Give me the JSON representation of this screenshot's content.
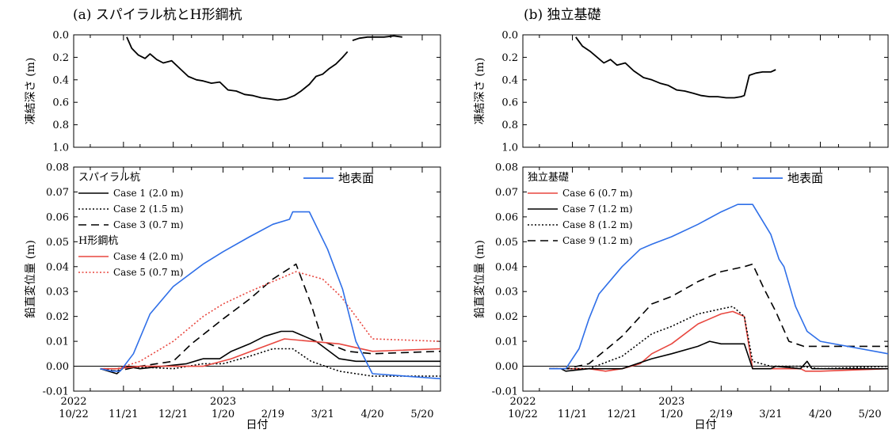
{
  "chart_data": [
    {
      "type": "line",
      "panel": "top",
      "title": "(a) スパイラル杭とH形鋼杭",
      "ylabel": "凍結深さ (m)",
      "ylim": [
        0.0,
        1.0
      ],
      "y_inverted": true,
      "yticks": [
        "0.0",
        "0.2",
        "0.4",
        "0.6",
        "0.8",
        "1.0"
      ],
      "series": [
        {
          "name": "",
          "color": "#000000",
          "dash": "solid",
          "x": [
            "2022-11-23",
            "2022-11-26",
            "2022-11-30",
            "2022-12-04",
            "2022-12-07",
            "2022-12-11",
            "2022-12-15",
            "2022-12-20",
            "2022-12-25",
            "2022-12-30",
            "2023-01-04",
            "2023-01-08",
            "2023-01-13",
            "2023-01-18",
            "2023-01-23",
            "2023-01-28",
            "2023-02-02",
            "2023-02-07",
            "2023-02-12",
            "2023-02-17",
            "2023-02-22",
            "2023-02-27",
            "2023-03-04",
            "2023-03-08",
            "2023-03-13",
            "2023-03-17",
            "2023-03-21",
            "2023-03-25",
            "2023-03-29",
            "2023-04-02",
            "2023-04-05"
          ],
          "y": [
            0.02,
            0.12,
            0.18,
            0.21,
            0.17,
            0.22,
            0.25,
            0.23,
            0.3,
            0.37,
            0.4,
            0.41,
            0.43,
            0.42,
            0.49,
            0.5,
            0.53,
            0.54,
            0.56,
            0.57,
            0.58,
            0.57,
            0.54,
            0.5,
            0.44,
            0.37,
            0.35,
            0.3,
            0.26,
            0.2,
            0.15
          ]
        },
        {
          "name": "",
          "color": "#000000",
          "dash": "solid",
          "x": [
            "2023-04-08",
            "2023-04-12",
            "2023-04-17",
            "2023-04-22",
            "2023-04-27",
            "2023-05-03",
            "2023-05-08"
          ],
          "y": [
            0.05,
            0.03,
            0.02,
            0.02,
            0.02,
            0.01,
            0.02
          ]
        }
      ],
      "xlim": [
        "2022-10-22",
        "2023-05-31"
      ]
    },
    {
      "type": "line",
      "panel": "bottom",
      "ylabel": "鉛直変位量 (m)",
      "xlabel": "日付",
      "ylim": [
        -0.01,
        0.08
      ],
      "yticks": [
        "-0.01",
        "0.00",
        "0.01",
        "0.02",
        "0.03",
        "0.04",
        "0.05",
        "0.06",
        "0.07",
        "0.08"
      ],
      "xticks": [
        {
          "date": "2022-10-22",
          "l1": "2022",
          "l2": "10/22"
        },
        {
          "date": "2022-11-21",
          "l1": "",
          "l2": "11/21"
        },
        {
          "date": "2022-12-21",
          "l1": "",
          "l2": "12/21"
        },
        {
          "date": "2023-01-20",
          "l1": "2023",
          "l2": "1/20"
        },
        {
          "date": "2023-02-19",
          "l1": "",
          "l2": "2/19"
        },
        {
          "date": "2023-03-21",
          "l1": "",
          "l2": "3/21"
        },
        {
          "date": "2023-04-20",
          "l1": "",
          "l2": "4/20"
        },
        {
          "date": "2023-05-20",
          "l1": "",
          "l2": "5/20"
        }
      ],
      "xlim": [
        "2022-10-22",
        "2023-05-31"
      ],
      "legend_groups": [
        "スパイラル杭",
        "H形鋼杭"
      ],
      "surface_legend": "地表面",
      "series": [
        {
          "name": "Case 1 (2.0 m)",
          "group": 0,
          "color": "#000000",
          "dash": "solid",
          "x": [
            "2022-11-07",
            "2022-11-12",
            "2022-11-17",
            "2022-11-22",
            "2022-12-01",
            "2022-12-15",
            "2022-12-29",
            "2023-01-08",
            "2023-01-18",
            "2023-01-25",
            "2023-02-05",
            "2023-02-14",
            "2023-02-24",
            "2023-03-03",
            "2023-03-10",
            "2023-03-17",
            "2023-03-31",
            "2023-04-10",
            "2023-04-20",
            "2023-05-31"
          ],
          "y": [
            -0.001,
            -0.002,
            -0.003,
            0.0,
            -0.001,
            0.0,
            0.001,
            0.003,
            0.003,
            0.006,
            0.009,
            0.012,
            0.014,
            0.014,
            0.012,
            0.01,
            0.003,
            0.002,
            0.002,
            0.002
          ]
        },
        {
          "name": "Case 2 (1.5 m)",
          "group": 0,
          "color": "#000000",
          "dash": "2,2.5",
          "x": [
            "2022-11-07",
            "2022-11-17",
            "2022-11-22",
            "2022-12-21",
            "2023-01-08",
            "2023-01-20",
            "2023-02-05",
            "2023-02-19",
            "2023-03-03",
            "2023-03-14",
            "2023-03-31",
            "2023-04-20",
            "2023-05-31"
          ],
          "y": [
            -0.001,
            -0.002,
            0.0,
            -0.001,
            0.001,
            0.001,
            0.004,
            0.007,
            0.007,
            0.002,
            -0.002,
            -0.004,
            -0.004
          ]
        },
        {
          "name": "Case 3 (0.7 m)",
          "group": 0,
          "color": "#000000",
          "dash": "10,6",
          "x": [
            "2022-11-07",
            "2022-11-17",
            "2022-12-01",
            "2022-12-21",
            "2023-01-01",
            "2023-01-20",
            "2023-02-05",
            "2023-02-19",
            "2023-03-05",
            "2023-03-14",
            "2023-03-21",
            "2023-04-05",
            "2023-04-20",
            "2023-05-31"
          ],
          "y": [
            -0.001,
            -0.002,
            0.0,
            0.002,
            0.009,
            0.019,
            0.027,
            0.035,
            0.041,
            0.025,
            0.01,
            0.006,
            0.005,
            0.006
          ]
        },
        {
          "name": "Case 4 (2.0 m)",
          "group": 1,
          "color": "#e8473f",
          "dash": "solid",
          "x": [
            "2022-11-07",
            "2022-11-17",
            "2022-12-01",
            "2022-12-21",
            "2023-01-08",
            "2023-01-25",
            "2023-02-10",
            "2023-02-26",
            "2023-03-14",
            "2023-03-31",
            "2023-04-20",
            "2023-05-31"
          ],
          "y": [
            -0.001,
            -0.001,
            0.0,
            0.0,
            0.0,
            0.003,
            0.007,
            0.011,
            0.01,
            0.009,
            0.006,
            0.007
          ]
        },
        {
          "name": "Case 5 (0.7 m)",
          "group": 1,
          "color": "#e8473f",
          "dash": "2,2.5",
          "x": [
            "2022-11-07",
            "2022-11-17",
            "2022-12-01",
            "2022-12-21",
            "2023-01-08",
            "2023-01-20",
            "2023-02-05",
            "2023-02-19",
            "2023-03-05",
            "2023-03-21",
            "2023-04-01",
            "2023-04-10",
            "2023-04-20",
            "2023-05-31"
          ],
          "y": [
            -0.001,
            -0.001,
            0.002,
            0.01,
            0.02,
            0.025,
            0.03,
            0.034,
            0.038,
            0.035,
            0.028,
            0.02,
            0.011,
            0.01
          ]
        },
        {
          "name": "地表面",
          "color": "#2f6fe8",
          "dash": "solid",
          "x": [
            "2022-11-07",
            "2022-11-14",
            "2022-11-19",
            "2022-11-27",
            "2022-12-07",
            "2022-12-21",
            "2023-01-08",
            "2023-01-20",
            "2023-02-05",
            "2023-02-19",
            "2023-03-01",
            "2023-03-03",
            "2023-03-13",
            "2023-03-24",
            "2023-04-02",
            "2023-04-10",
            "2023-04-20",
            "2023-05-31"
          ],
          "y": [
            -0.001,
            -0.002,
            -0.002,
            0.005,
            0.021,
            0.032,
            0.041,
            0.046,
            0.052,
            0.057,
            0.059,
            0.062,
            0.062,
            0.047,
            0.031,
            0.01,
            -0.003,
            -0.005
          ]
        }
      ]
    },
    {
      "type": "line",
      "panel": "top",
      "title": "(b) 独立基礎",
      "ylabel": "凍結深さ (m)",
      "ylim": [
        0.0,
        1.0
      ],
      "y_inverted": true,
      "yticks": [
        "0.0",
        "0.2",
        "0.4",
        "0.6",
        "0.8",
        "1.0"
      ],
      "series": [
        {
          "name": "",
          "color": "#000000",
          "dash": "solid",
          "x": [
            "2022-11-23",
            "2022-11-27",
            "2022-12-02",
            "2022-12-06",
            "2022-12-10",
            "2022-12-14",
            "2022-12-18",
            "2022-12-23",
            "2022-12-28",
            "2023-01-03",
            "2023-01-08",
            "2023-01-13",
            "2023-01-18",
            "2023-01-23",
            "2023-01-28",
            "2023-02-02",
            "2023-02-07",
            "2023-02-12",
            "2023-02-17",
            "2023-02-22",
            "2023-02-27",
            "2023-03-03",
            "2023-03-05",
            "2023-03-08",
            "2023-03-12",
            "2023-03-16",
            "2023-03-21",
            "2023-03-24"
          ],
          "y": [
            0.02,
            0.1,
            0.15,
            0.2,
            0.25,
            0.22,
            0.27,
            0.25,
            0.32,
            0.38,
            0.4,
            0.43,
            0.45,
            0.49,
            0.5,
            0.52,
            0.54,
            0.55,
            0.55,
            0.56,
            0.56,
            0.55,
            0.54,
            0.36,
            0.34,
            0.33,
            0.33,
            0.31
          ]
        }
      ],
      "xlim": [
        "2022-10-22",
        "2023-05-31"
      ]
    },
    {
      "type": "line",
      "panel": "bottom",
      "ylabel": "鉛直変位量 (m)",
      "xlabel": "日付",
      "ylim": [
        -0.01,
        0.08
      ],
      "yticks": [
        "-0.01",
        "0.00",
        "0.01",
        "0.02",
        "0.03",
        "0.04",
        "0.05",
        "0.06",
        "0.07",
        "0.08"
      ],
      "xticks": [
        {
          "date": "2022-10-22",
          "l1": "2022",
          "l2": "10/22"
        },
        {
          "date": "2022-11-21",
          "l1": "",
          "l2": "11/21"
        },
        {
          "date": "2022-12-21",
          "l1": "",
          "l2": "12/21"
        },
        {
          "date": "2023-01-20",
          "l1": "2023",
          "l2": "1/20"
        },
        {
          "date": "2023-02-19",
          "l1": "",
          "l2": "2/19"
        },
        {
          "date": "2023-03-21",
          "l1": "",
          "l2": "3/21"
        },
        {
          "date": "2023-04-20",
          "l1": "",
          "l2": "4/20"
        },
        {
          "date": "2023-05-20",
          "l1": "",
          "l2": "5/20"
        }
      ],
      "xlim": [
        "2022-10-22",
        "2023-05-31"
      ],
      "legend_groups": [
        "独立基礎"
      ],
      "surface_legend": "地表面",
      "series": [
        {
          "name": "Case 6 (0.7 m)",
          "group": 0,
          "color": "#e8473f",
          "dash": "solid",
          "x": [
            "2022-11-07",
            "2022-11-17",
            "2022-12-01",
            "2022-12-11",
            "2022-12-21",
            "2023-01-01",
            "2023-01-08",
            "2023-01-20",
            "2023-02-05",
            "2023-02-19",
            "2023-02-26",
            "2023-03-05",
            "2023-03-10",
            "2023-03-21",
            "2023-04-01",
            "2023-04-08",
            "2023-04-11",
            "2023-04-15",
            "2023-04-20",
            "2023-05-31"
          ],
          "y": [
            -0.001,
            -0.001,
            -0.001,
            -0.002,
            -0.001,
            0.001,
            0.005,
            0.009,
            0.017,
            0.021,
            0.022,
            0.02,
            -0.001,
            -0.001,
            -0.001,
            -0.001,
            -0.002,
            -0.002,
            -0.002,
            -0.001
          ]
        },
        {
          "name": "Case 7 (1.2 m)",
          "group": 0,
          "color": "#000000",
          "dash": "solid",
          "x": [
            "2022-11-07",
            "2022-11-14",
            "2022-11-17",
            "2022-12-01",
            "2022-12-21",
            "2023-01-08",
            "2023-01-20",
            "2023-02-05",
            "2023-02-12",
            "2023-02-19",
            "2023-02-26",
            "2023-03-05",
            "2023-03-10",
            "2023-03-21",
            "2023-03-24",
            "2023-04-08",
            "2023-04-12",
            "2023-04-15",
            "2023-04-20",
            "2023-05-31"
          ],
          "y": [
            -0.001,
            -0.001,
            -0.002,
            -0.001,
            -0.001,
            0.003,
            0.005,
            0.008,
            0.01,
            0.009,
            0.009,
            0.009,
            -0.001,
            -0.001,
            0.0,
            -0.001,
            0.002,
            -0.001,
            -0.001,
            -0.001
          ]
        },
        {
          "name": "Case 8 (1.2 m)",
          "group": 0,
          "color": "#000000",
          "dash": "2,2.5",
          "x": [
            "2022-11-07",
            "2022-11-17",
            "2022-12-01",
            "2022-12-21",
            "2023-01-08",
            "2023-01-20",
            "2023-02-05",
            "2023-02-19",
            "2023-02-26",
            "2023-03-05",
            "2023-03-10",
            "2023-03-21",
            "2023-04-08",
            "2023-04-20",
            "2023-05-31"
          ],
          "y": [
            -0.001,
            -0.001,
            -0.001,
            0.004,
            0.013,
            0.016,
            0.021,
            0.023,
            0.024,
            0.02,
            0.002,
            0.0,
            0.0,
            -0.001,
            0.0
          ]
        },
        {
          "name": "Case 9 (1.2 m)",
          "group": 0,
          "color": "#000000",
          "dash": "10,6",
          "x": [
            "2022-11-07",
            "2022-11-17",
            "2022-12-01",
            "2022-12-21",
            "2023-01-08",
            "2023-01-20",
            "2023-02-05",
            "2023-02-19",
            "2023-03-05",
            "2023-03-10",
            "2023-03-17",
            "2023-03-24",
            "2023-04-01",
            "2023-04-10",
            "2023-04-20",
            "2023-05-31"
          ],
          "y": [
            -0.001,
            -0.001,
            0.001,
            0.012,
            0.025,
            0.028,
            0.034,
            0.038,
            0.04,
            0.041,
            0.031,
            0.022,
            0.01,
            0.008,
            0.008,
            0.008
          ]
        },
        {
          "name": "地表面",
          "color": "#2f6fe8",
          "dash": "solid",
          "x": [
            "2022-11-07",
            "2022-11-17",
            "2022-11-25",
            "2022-12-01",
            "2022-12-07",
            "2022-12-21",
            "2023-01-01",
            "2023-01-08",
            "2023-01-20",
            "2023-02-05",
            "2023-02-19",
            "2023-03-01",
            "2023-03-10",
            "2023-03-21",
            "2023-03-26",
            "2023-03-29",
            "2023-04-05",
            "2023-04-12",
            "2023-04-20",
            "2023-05-31"
          ],
          "y": [
            -0.001,
            -0.001,
            0.007,
            0.019,
            0.029,
            0.04,
            0.047,
            0.049,
            0.052,
            0.057,
            0.062,
            0.065,
            0.065,
            0.053,
            0.043,
            0.04,
            0.024,
            0.014,
            0.01,
            0.005
          ]
        }
      ]
    }
  ]
}
